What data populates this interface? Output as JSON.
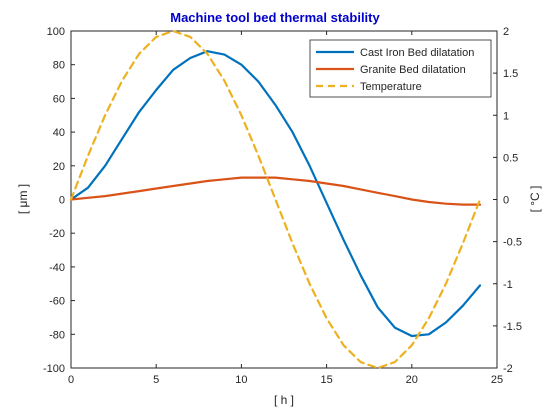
{
  "chart_data": {
    "type": "line",
    "title": "Machine tool bed thermal stability",
    "xlabel": "[ h ]",
    "ylabel_left": "[ μm ]",
    "ylabel_right": "[ °C ]",
    "xlim": [
      0,
      25
    ],
    "ylim_left": [
      -100,
      100
    ],
    "ylim_right": [
      -2,
      2
    ],
    "x_ticks": [
      "0",
      "5",
      "10",
      "15",
      "20",
      "25"
    ],
    "y_left_ticks": [
      "-100",
      "-80",
      "-60",
      "-40",
      "-20",
      "0",
      "20",
      "40",
      "60",
      "80",
      "100"
    ],
    "y_right_ticks": [
      "-2",
      "-1.5",
      "-1",
      "-0.5",
      "0",
      "0.5",
      "1",
      "1.5",
      "2"
    ],
    "grid": false,
    "legend_position": "top-right",
    "colors": {
      "title": "#0000cc",
      "axes": "#262626"
    },
    "series": [
      {
        "name": "Cast Iron Bed dilatation",
        "axis": "left",
        "color": "#0072bd",
        "dash": "solid",
        "x": [
          0,
          1,
          2,
          3,
          4,
          5,
          6,
          7,
          8,
          9,
          10,
          11,
          12,
          13,
          14,
          15,
          16,
          17,
          18,
          19,
          20,
          21,
          22,
          23,
          24
        ],
        "y": [
          0,
          7,
          20,
          36,
          52,
          65,
          77,
          84,
          88,
          86,
          80,
          70,
          56,
          40,
          20,
          -2,
          -24,
          -45,
          -64,
          -76,
          -81,
          -80,
          -73,
          -63,
          -51
        ]
      },
      {
        "name": "Granite Bed dilatation",
        "axis": "left",
        "color": "#d95319",
        "dash": "solid",
        "x": [
          0,
          1,
          2,
          3,
          4,
          5,
          6,
          7,
          8,
          9,
          10,
          11,
          12,
          13,
          14,
          15,
          16,
          17,
          18,
          19,
          20,
          21,
          22,
          23,
          24
        ],
        "y": [
          0,
          1,
          2,
          3.5,
          5,
          6.5,
          8,
          9.5,
          11,
          12,
          13,
          13,
          13,
          12,
          11,
          9.5,
          8,
          6,
          4,
          2,
          0,
          -1.5,
          -2.5,
          -3,
          -3
        ]
      },
      {
        "name": "Temperature",
        "axis": "right",
        "color": "#edb120",
        "dash": "dashed",
        "x": [
          0,
          1,
          2,
          3,
          4,
          5,
          6,
          7,
          8,
          9,
          10,
          11,
          12,
          13,
          14,
          15,
          16,
          17,
          18,
          19,
          20,
          21,
          22,
          23,
          24
        ],
        "y": [
          0,
          0.52,
          1.0,
          1.41,
          1.73,
          1.93,
          2.0,
          1.93,
          1.73,
          1.41,
          1.0,
          0.52,
          0,
          -0.52,
          -1.0,
          -1.41,
          -1.73,
          -1.93,
          -2.0,
          -1.93,
          -1.73,
          -1.41,
          -1.0,
          -0.52,
          0
        ]
      }
    ]
  }
}
